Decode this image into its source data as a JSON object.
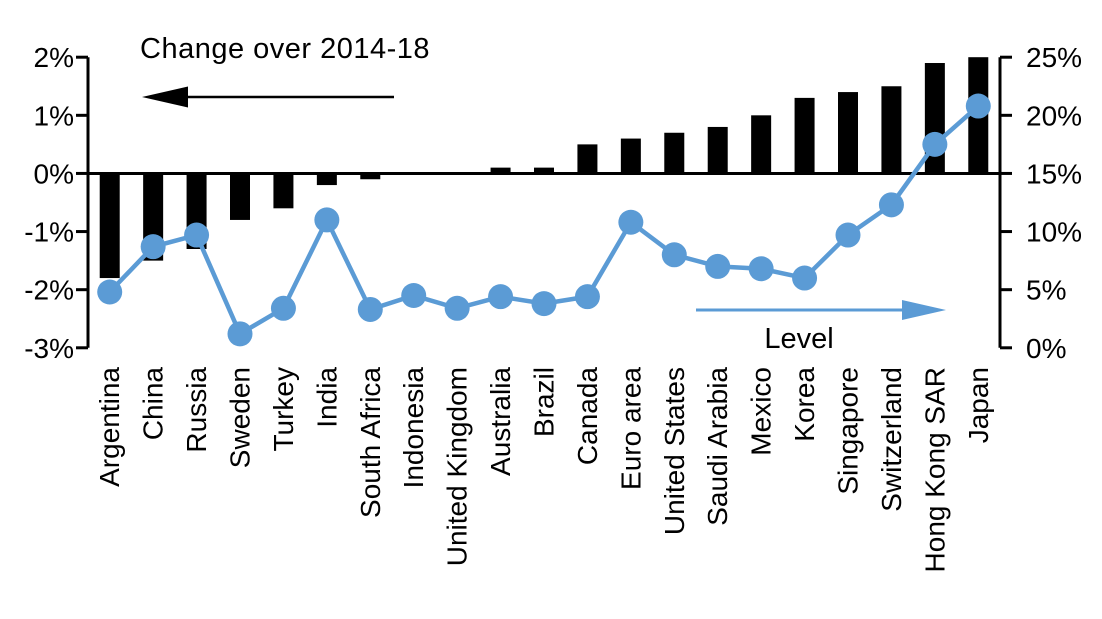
{
  "chart_data": {
    "type": "bar",
    "subtype": "combo-bar-line-dual-axis",
    "title": "",
    "grid": false,
    "categories": [
      "Argentina",
      "China",
      "Russia",
      "Sweden",
      "Turkey",
      "India",
      "South Africa",
      "Indonesia",
      "United Kingdom",
      "Australia",
      "Brazil",
      "Canada",
      "Euro area",
      "United States",
      "Saudi Arabia",
      "Mexico",
      "Korea",
      "Singapore",
      "Switzerland",
      "Hong Kong SAR",
      "Japan"
    ],
    "series": [
      {
        "name": "Change over 2014-18",
        "type": "bar",
        "axis": "left",
        "color": "#000000",
        "unit": "%",
        "values": [
          -1.8,
          -1.5,
          -1.3,
          -0.8,
          -0.6,
          -0.2,
          -0.1,
          0.0,
          0.0,
          0.1,
          0.1,
          0.5,
          0.6,
          0.7,
          0.8,
          1.0,
          1.3,
          1.4,
          1.5,
          1.9,
          2.0
        ]
      },
      {
        "name": "Level",
        "type": "line",
        "axis": "right",
        "color": "#5b9bd5",
        "unit": "%",
        "values": [
          4.8,
          8.7,
          9.7,
          1.2,
          3.4,
          11.0,
          3.3,
          4.5,
          3.4,
          4.4,
          3.8,
          4.4,
          10.8,
          8.0,
          7.0,
          6.8,
          6.0,
          9.7,
          12.3,
          17.5,
          20.8
        ]
      }
    ],
    "left_axis": {
      "min": -3,
      "max": 2,
      "tick_values": [
        2,
        1,
        0,
        -1,
        -2,
        -3
      ],
      "tick_labels": [
        "2%",
        "1%",
        "0%",
        "-1%",
        "-2%",
        "-3%"
      ]
    },
    "right_axis": {
      "min": 0,
      "max": 25,
      "tick_values": [
        25,
        20,
        15,
        10,
        5,
        0
      ],
      "tick_labels": [
        "25%",
        "20%",
        "15%",
        "10%",
        "5%",
        "0%"
      ]
    },
    "annotations": {
      "bar_label": "Change over 2014-18",
      "line_label": "Level",
      "bar_arrow_direction": "left",
      "line_arrow_direction": "right"
    },
    "colors": {
      "bar": "#000000",
      "line": "#5b9bd5",
      "axis": "#000000"
    }
  }
}
